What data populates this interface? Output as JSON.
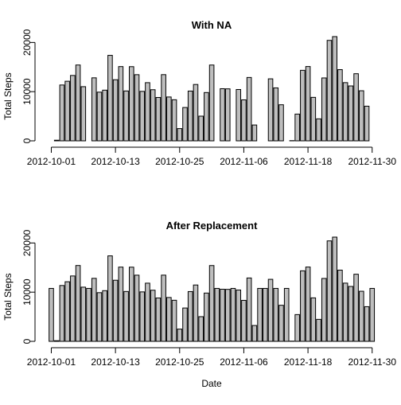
{
  "chart_data": [
    {
      "type": "bar",
      "title": "With NA",
      "xlabel": "",
      "ylabel": "Total Steps",
      "ylim": [
        0,
        21194
      ],
      "yticks": [
        0,
        10000,
        20000
      ],
      "x_tick_labels": [
        "2012-10-01",
        "2012-10-13",
        "2012-10-25",
        "2012-11-06",
        "2012-11-18",
        "2012-11-30"
      ],
      "x_tick_indices": [
        0,
        12,
        24,
        36,
        48,
        60
      ],
      "values": [
        null,
        126,
        11352,
        12116,
        13294,
        15420,
        11015,
        null,
        12811,
        9900,
        10304,
        17382,
        12426,
        15098,
        10139,
        15084,
        13452,
        10056,
        11829,
        10395,
        8821,
        13460,
        8918,
        8355,
        2492,
        6778,
        10119,
        11458,
        5018,
        9819,
        15414,
        null,
        10600,
        10571,
        null,
        10439,
        8334,
        12883,
        3219,
        null,
        null,
        12608,
        10765,
        7336,
        null,
        41,
        5441,
        14339,
        15110,
        8841,
        4472,
        12787,
        20427,
        21194,
        14478,
        11834,
        11162,
        13646,
        10183,
        7047,
        null
      ]
    },
    {
      "type": "bar",
      "title": "After Replacement",
      "xlabel": "Date",
      "ylabel": "Total Steps",
      "ylim": [
        0,
        21194
      ],
      "yticks": [
        0,
        10000,
        20000
      ],
      "x_tick_labels": [
        "2012-10-01",
        "2012-10-13",
        "2012-10-25",
        "2012-11-06",
        "2012-11-18",
        "2012-11-30"
      ],
      "x_tick_indices": [
        0,
        12,
        24,
        36,
        48,
        60
      ],
      "values": [
        10766,
        126,
        11352,
        12116,
        13294,
        15420,
        11015,
        10766,
        12811,
        9900,
        10304,
        17382,
        12426,
        15098,
        10139,
        15084,
        13452,
        10056,
        11829,
        10395,
        8821,
        13460,
        8918,
        8355,
        2492,
        6778,
        10119,
        11458,
        5018,
        9819,
        15414,
        10766,
        10600,
        10571,
        10766,
        10439,
        8334,
        12883,
        3219,
        10766,
        10766,
        12608,
        10765,
        7336,
        10766,
        41,
        5441,
        14339,
        15110,
        8841,
        4472,
        12787,
        20427,
        21194,
        14478,
        11834,
        11162,
        13646,
        10183,
        7047,
        10766
      ]
    }
  ]
}
